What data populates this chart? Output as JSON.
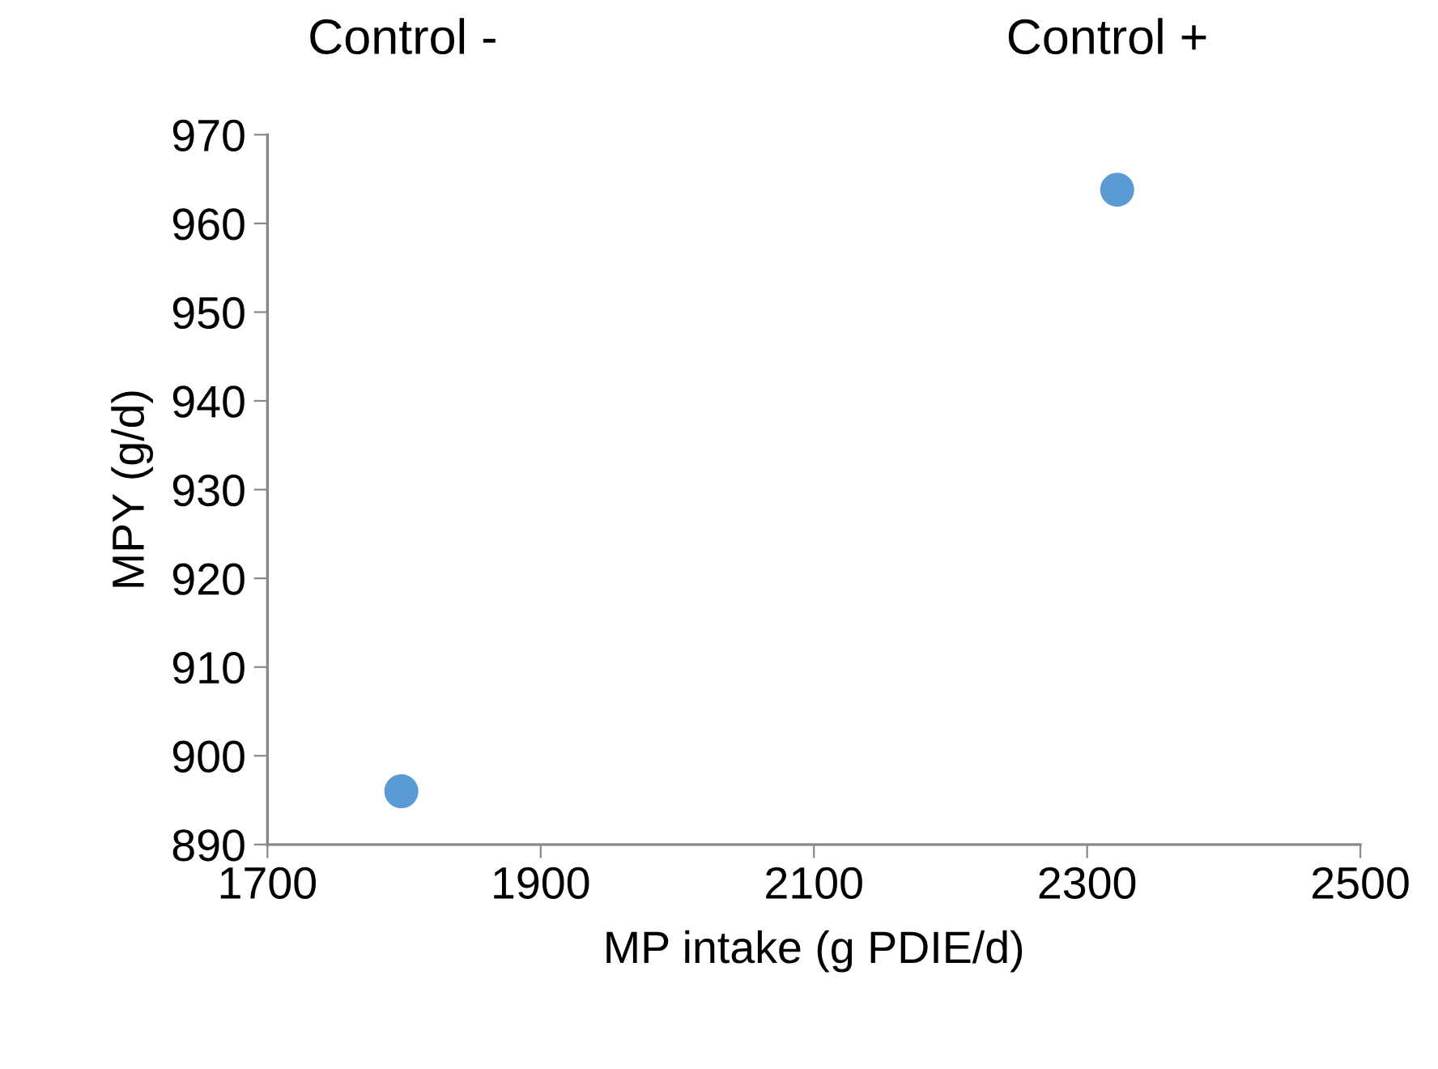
{
  "chart_data": {
    "type": "scatter",
    "xlabel": "MP intake (g PDIE/d)",
    "ylabel": "MPY (g/d)",
    "x": [
      1798,
      2322
    ],
    "series": [
      {
        "color": "#5b9bd5",
        "values": [
          896,
          963.8
        ]
      }
    ],
    "xlim": [
      1700,
      2500
    ],
    "xticks": [
      1700,
      1900,
      2100,
      2300,
      2500
    ],
    "ylim": [
      890,
      970
    ],
    "yticks": [
      890,
      900,
      910,
      920,
      930,
      940,
      950,
      960,
      970
    ],
    "annotations": [
      "Control -",
      "Control +"
    ],
    "grid": false,
    "legend": false,
    "marker": "circle"
  }
}
